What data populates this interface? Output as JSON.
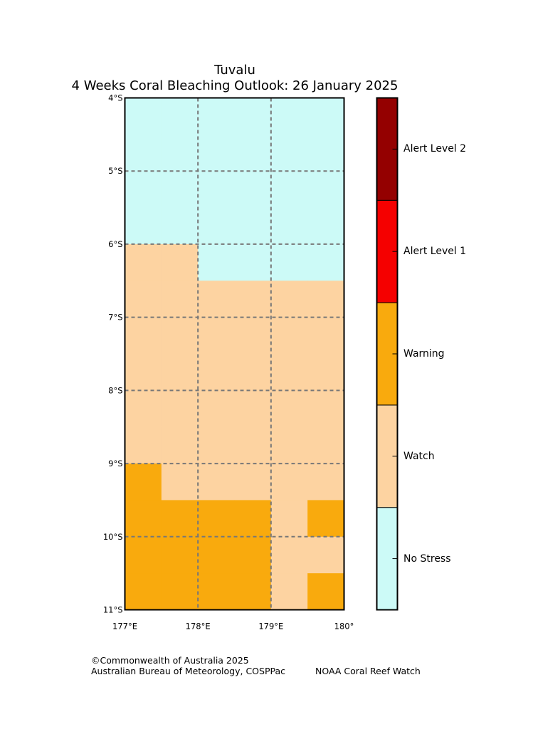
{
  "title": {
    "line1": "Tuvalu",
    "line2": "4 Weeks Coral Bleaching Outlook: 26 January 2025"
  },
  "map": {
    "lon_range": [
      177,
      180
    ],
    "lat_range": [
      -11,
      -4
    ],
    "cell_size_deg": 0.5,
    "lat_ticks": [
      {
        "value": -4,
        "label": "4°S"
      },
      {
        "value": -5,
        "label": "5°S"
      },
      {
        "value": -6,
        "label": "6°S"
      },
      {
        "value": -7,
        "label": "7°S"
      },
      {
        "value": -8,
        "label": "8°S"
      },
      {
        "value": -9,
        "label": "9°S"
      },
      {
        "value": -10,
        "label": "10°S"
      },
      {
        "value": -11,
        "label": "11°S"
      }
    ],
    "lon_ticks": [
      {
        "value": 177,
        "label": "177°E"
      },
      {
        "value": 178,
        "label": "178°E"
      },
      {
        "value": 179,
        "label": "179°E"
      },
      {
        "value": 180,
        "label": "180°"
      }
    ],
    "grid_note": "rows from north (4°S) to south (11°S), columns from west (177°E) to east (180°); 0=No Stress 1=Watch 2=Warning",
    "grid": [
      [
        0,
        0,
        0,
        0,
        0,
        0
      ],
      [
        0,
        0,
        0,
        0,
        0,
        0
      ],
      [
        0,
        0,
        0,
        0,
        0,
        0
      ],
      [
        0,
        0,
        0,
        0,
        0,
        0
      ],
      [
        1,
        1,
        0,
        0,
        0,
        0
      ],
      [
        1,
        1,
        1,
        1,
        1,
        1
      ],
      [
        1,
        1,
        1,
        1,
        1,
        1
      ],
      [
        1,
        1,
        1,
        1,
        1,
        1
      ],
      [
        1,
        1,
        1,
        1,
        1,
        1
      ],
      [
        1,
        1,
        1,
        1,
        1,
        1
      ],
      [
        2,
        1,
        1,
        1,
        1,
        1
      ],
      [
        2,
        2,
        2,
        2,
        1,
        2
      ],
      [
        2,
        2,
        2,
        2,
        1,
        1
      ],
      [
        2,
        2,
        2,
        2,
        1,
        2
      ]
    ]
  },
  "legend": {
    "levels": [
      {
        "label": "No Stress",
        "color": "#ccfaf7"
      },
      {
        "label": "Watch",
        "color": "#fdd3a1"
      },
      {
        "label": "Warning",
        "color": "#f9aa0d"
      },
      {
        "label": "Alert Level 1",
        "color": "#f50000"
      },
      {
        "label": "Alert Level 2",
        "color": "#940000"
      }
    ]
  },
  "footer": {
    "copyright": "©Commonwealth of Australia 2025",
    "bureau": "Australian Bureau of Meteorology, COSPPac",
    "noaa": "NOAA Coral Reef Watch"
  }
}
